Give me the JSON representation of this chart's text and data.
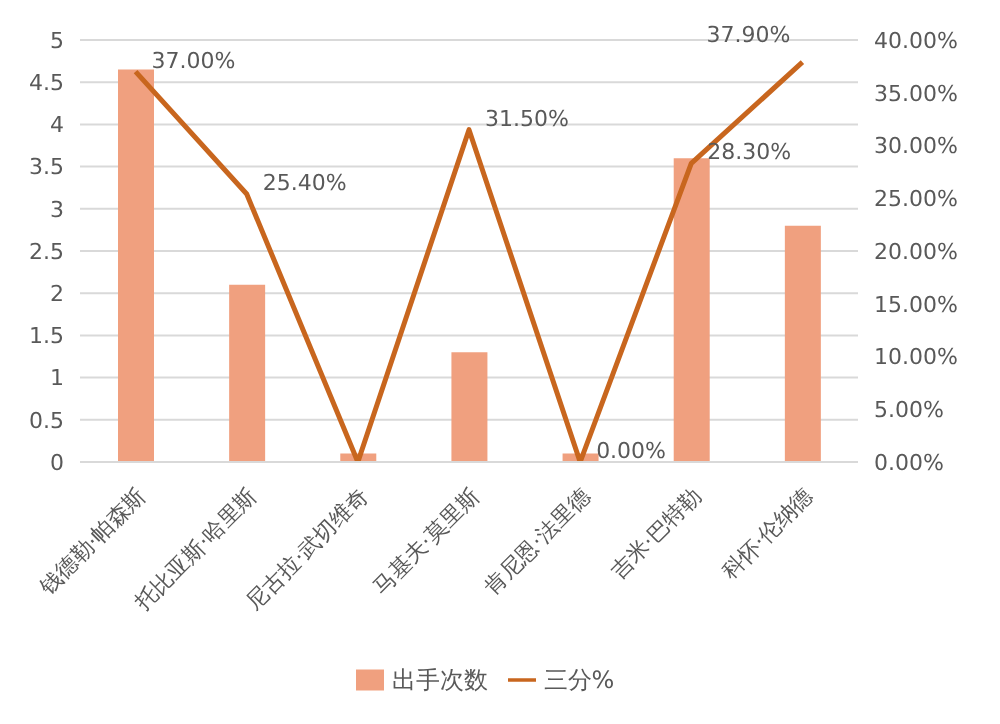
{
  "chart_data": {
    "type": "bar",
    "categories": [
      "钱德勒·帕森斯",
      "托比亚斯·哈里斯",
      "尼古拉·武切维奇",
      "马基夫·莫里斯",
      "肯尼恩·法里德",
      "吉米·巴特勒",
      "科怀·伦纳德"
    ],
    "series": [
      {
        "name": "出手次数",
        "color": "#f0a07f",
        "values": [
          4.65,
          2.1,
          0.1,
          1.3,
          0.1,
          3.6,
          2.8
        ]
      },
      {
        "name": "三分%",
        "type": "line",
        "axis": "y2",
        "color": "#c8661e",
        "values": [
          37,
          25.4,
          0,
          31.5,
          0,
          28.3,
          37.9
        ],
        "value_labels": [
          "37.00%",
          "25.40%",
          null,
          "31.50%",
          "0.00%",
          "28.30%",
          "37.90%"
        ]
      }
    ],
    "ylim": [
      0,
      5
    ],
    "yticks": [
      0,
      0.5,
      1,
      1.5,
      2,
      2.5,
      3,
      3.5,
      4,
      4.5,
      5
    ],
    "y2lim": [
      0,
      40
    ],
    "y2ticks": [
      {
        "value": 0,
        "label": "0.00%"
      },
      {
        "value": 5,
        "label": "5.00%"
      },
      {
        "value": 10,
        "label": "10.00%"
      },
      {
        "value": 15,
        "label": "15.00%"
      },
      {
        "value": 20,
        "label": "20.00%"
      },
      {
        "value": 25,
        "label": "25.00%"
      },
      {
        "value": 30,
        "label": "30.00%"
      },
      {
        "value": 35,
        "label": "35.00%"
      },
      {
        "value": 40,
        "label": "40.00%"
      }
    ],
    "grid": "y",
    "legend": "bottom",
    "marker": "none"
  }
}
